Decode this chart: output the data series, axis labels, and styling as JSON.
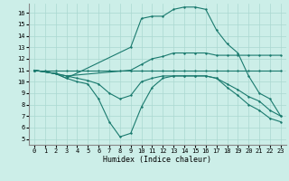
{
  "xlabel": "Humidex (Indice chaleur)",
  "bg_color": "#cceee8",
  "line_color": "#1a7a6e",
  "grid_color": "#aad8d0",
  "xlim": [
    -0.5,
    23.5
  ],
  "ylim": [
    4.5,
    16.8
  ],
  "yticks": [
    5,
    6,
    7,
    8,
    9,
    10,
    11,
    12,
    13,
    14,
    15,
    16
  ],
  "xticks": [
    0,
    1,
    2,
    3,
    4,
    5,
    6,
    7,
    8,
    9,
    10,
    11,
    12,
    13,
    14,
    15,
    16,
    17,
    18,
    19,
    20,
    21,
    22,
    23
  ],
  "line1_x": [
    0,
    1,
    2,
    3,
    4,
    5,
    6,
    7,
    8,
    9,
    10,
    11,
    12,
    13,
    14,
    15,
    16,
    17,
    18,
    19,
    20,
    21,
    22,
    23
  ],
  "line1_y": [
    11,
    11,
    11,
    11,
    11,
    11,
    11,
    11,
    11,
    11,
    11,
    11,
    11,
    11,
    11,
    11,
    11,
    11,
    11,
    11,
    11,
    11,
    11,
    11
  ],
  "line2_x": [
    0,
    2,
    3,
    9,
    10,
    11,
    12,
    13,
    14,
    15,
    16,
    17,
    18,
    19,
    20,
    21,
    22,
    23
  ],
  "line2_y": [
    11,
    10.7,
    10.5,
    11,
    11.5,
    12.0,
    12.2,
    12.5,
    12.5,
    12.5,
    12.5,
    12.3,
    12.3,
    12.3,
    12.3,
    12.3,
    12.3,
    12.3
  ],
  "line3_x": [
    0,
    2,
    3,
    4,
    5,
    6,
    7,
    8,
    9,
    10,
    11,
    12,
    13,
    14,
    15,
    16,
    17,
    18,
    19,
    20,
    21,
    22,
    23
  ],
  "line3_y": [
    11,
    10.7,
    10.5,
    10.3,
    10.1,
    9.8,
    9.0,
    8.5,
    8.8,
    10.0,
    10.3,
    10.5,
    10.5,
    10.5,
    10.5,
    10.5,
    10.3,
    9.8,
    9.3,
    8.7,
    8.3,
    7.5,
    7.0
  ],
  "line4_x": [
    0,
    2,
    3,
    4,
    5,
    6,
    7,
    8,
    9,
    10,
    11,
    12,
    13,
    14,
    15,
    16,
    17,
    18,
    19,
    20,
    21,
    22,
    23
  ],
  "line4_y": [
    11,
    10.7,
    10.3,
    10.0,
    9.8,
    8.5,
    6.5,
    5.2,
    5.5,
    7.8,
    9.5,
    10.3,
    10.5,
    10.5,
    10.5,
    10.5,
    10.3,
    9.5,
    8.8,
    8.0,
    7.5,
    6.8,
    6.5
  ],
  "line5_x": [
    0,
    2,
    3,
    9,
    10,
    11,
    12,
    13,
    14,
    15,
    16,
    17,
    18,
    19,
    20,
    21,
    22,
    23
  ],
  "line5_y": [
    11,
    10.7,
    10.3,
    13.0,
    15.5,
    15.7,
    15.7,
    16.3,
    16.5,
    16.5,
    16.3,
    14.5,
    13.3,
    12.5,
    10.5,
    9.0,
    8.5,
    7.0
  ]
}
